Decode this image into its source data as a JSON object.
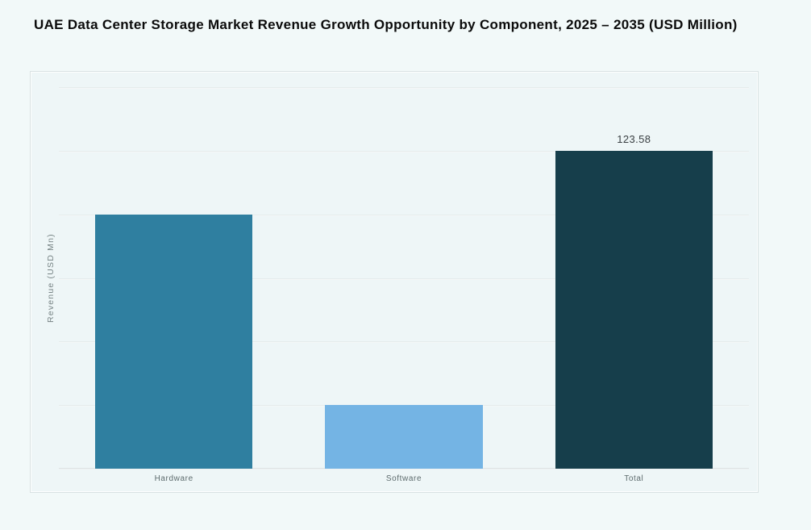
{
  "page": {
    "background": "#f2f9f9",
    "panel_background": "#eef6f7",
    "gridline_color": "#dee6e7",
    "text_color": "#0b0b0b",
    "axis_text_color": "#5c6a6c"
  },
  "header": {
    "title": "UAE Data Center Storage Market Revenue Growth Opportunity by Component, 2025 – 2035 (USD Million)"
  },
  "chart_data": {
    "type": "bar",
    "title": "UAE Data Center Storage Market Revenue Growth Opportunity by Component, 2025 – 2035 (USD Million)",
    "categories": [
      "Hardware",
      "Software",
      "Total"
    ],
    "values": [
      98.86,
      24.72,
      123.58
    ],
    "data_labels": [
      "",
      "",
      "123.58"
    ],
    "bar_colors": [
      "#2F7FA0",
      "#74B4E4",
      "#163E4B"
    ],
    "xlabel": "",
    "ylabel": "Revenue (USD Mn)",
    "ylim": [
      0,
      148.3
    ],
    "gridline_interval": 24.716,
    "grid": true,
    "legend": false,
    "y_tick_labels_visible": false
  }
}
